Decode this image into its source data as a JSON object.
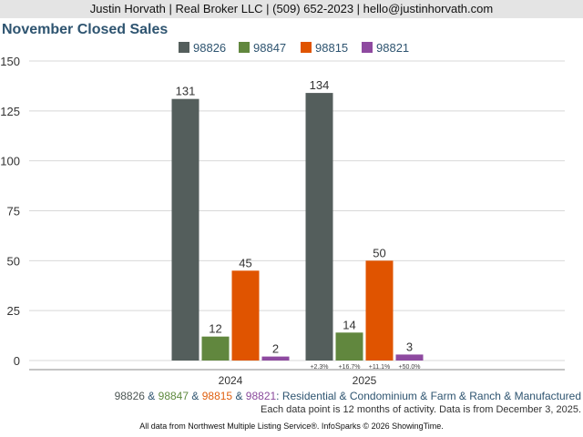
{
  "header": {
    "contact": "Justin Horvath | Real Broker LLC | (509) 652-2023 | hello@justinhorvath.com"
  },
  "chart_data": {
    "type": "bar",
    "title": "November Closed Sales",
    "categories": [
      "2024",
      "2025"
    ],
    "series": [
      {
        "name": "98826",
        "color": "#545e5c",
        "values": [
          131,
          134
        ]
      },
      {
        "name": "98847",
        "color": "#61873e",
        "values": [
          12,
          14
        ]
      },
      {
        "name": "98815",
        "color": "#e05400",
        "values": [
          45,
          50
        ]
      },
      {
        "name": "98821",
        "color": "#8e4aa0",
        "values": [
          2,
          3
        ]
      }
    ],
    "change_labels": [
      "+2.3%",
      "+16.7%",
      "+11.1%",
      "+50.0%"
    ],
    "ylim": [
      0,
      150
    ],
    "yticks": [
      "0",
      "25",
      "50",
      "75",
      "100",
      "125",
      "150"
    ],
    "legend_position": "top-center",
    "grid": true
  },
  "footer": {
    "zips": [
      "98826",
      "98847",
      "98815",
      "98821"
    ],
    "sep": "&",
    "types": ": Residential & Condominium & Farm & Ranch & Manufactured",
    "note": "Each data point is 12 months of activity. Data is from December 3, 2025.",
    "source": "All data from Northwest Multiple Listing Service®. InfoSparks © 2026 ShowingTime."
  }
}
